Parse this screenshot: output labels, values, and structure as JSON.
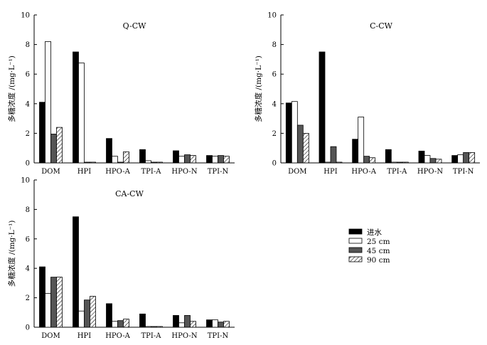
{
  "chart_data": [
    {
      "type": "bar",
      "title": "Q-CW",
      "ylabel": "多糖浓度 /(mg·L⁻¹)",
      "ylim": [
        0,
        10
      ],
      "yticks": [
        0,
        2,
        4,
        6,
        8,
        10
      ],
      "categories": [
        "DOM",
        "HPI",
        "HPO-A",
        "TPI-A",
        "HPO-N",
        "TPI-N"
      ],
      "series": [
        {
          "name": "进水",
          "values": [
            4.1,
            7.5,
            1.65,
            0.9,
            0.82,
            0.5
          ]
        },
        {
          "name": "25 cm",
          "values": [
            8.2,
            6.75,
            0.45,
            0.15,
            0.45,
            0.45
          ]
        },
        {
          "name": "45 cm",
          "values": [
            1.95,
            0.05,
            0.05,
            0.05,
            0.55,
            0.5
          ]
        },
        {
          "name": "90 cm",
          "values": [
            2.4,
            0.05,
            0.75,
            0.05,
            0.5,
            0.45
          ]
        }
      ]
    },
    {
      "type": "bar",
      "title": "C-CW",
      "ylabel": "多糖浓度 /(mg·L⁻¹)",
      "ylim": [
        0,
        10
      ],
      "yticks": [
        0,
        2,
        4,
        6,
        8,
        10
      ],
      "categories": [
        "DOM",
        "HPI",
        "HPO-A",
        "TPI-A",
        "HPO-N",
        "TPI-N"
      ],
      "series": [
        {
          "name": "进水",
          "values": [
            4.05,
            7.5,
            1.6,
            0.9,
            0.8,
            0.5
          ]
        },
        {
          "name": "25 cm",
          "values": [
            4.15,
            0.05,
            3.1,
            0.05,
            0.5,
            0.55
          ]
        },
        {
          "name": "45 cm",
          "values": [
            2.55,
            1.1,
            0.45,
            0.05,
            0.3,
            0.7
          ]
        },
        {
          "name": "90 cm",
          "values": [
            2.0,
            0.05,
            0.35,
            0.05,
            0.25,
            0.7
          ]
        }
      ]
    },
    {
      "type": "bar",
      "title": "CA-CW",
      "ylabel": "多糖浓度 /(mg·L⁻¹)",
      "ylim": [
        0,
        10
      ],
      "yticks": [
        0,
        2,
        4,
        6,
        8,
        10
      ],
      "categories": [
        "DOM",
        "HPI",
        "HPO-A",
        "TPI-A",
        "HPO-N",
        "TPI-N"
      ],
      "series": [
        {
          "name": "进水",
          "values": [
            4.1,
            7.5,
            1.6,
            0.9,
            0.8,
            0.5
          ]
        },
        {
          "name": "25 cm",
          "values": [
            2.3,
            1.1,
            0.4,
            0.05,
            0.3,
            0.5
          ]
        },
        {
          "name": "45 cm",
          "values": [
            3.4,
            1.85,
            0.45,
            0.05,
            0.8,
            0.35
          ]
        },
        {
          "name": "90 cm",
          "values": [
            3.4,
            2.1,
            0.55,
            0.05,
            0.4,
            0.4
          ]
        }
      ]
    }
  ],
  "legend": {
    "placement": "lower-right",
    "entries": [
      {
        "label": "进水",
        "style": "solid-black"
      },
      {
        "label": "25 cm",
        "style": "white"
      },
      {
        "label": "45 cm",
        "style": "dark-gray"
      },
      {
        "label": "90 cm",
        "style": "hatched"
      }
    ]
  },
  "colors": {
    "inflow": "#000000",
    "cm25": "#ffffff",
    "cm45": "#555555",
    "cm90_hatch": "#000000",
    "axis": "#000000"
  }
}
